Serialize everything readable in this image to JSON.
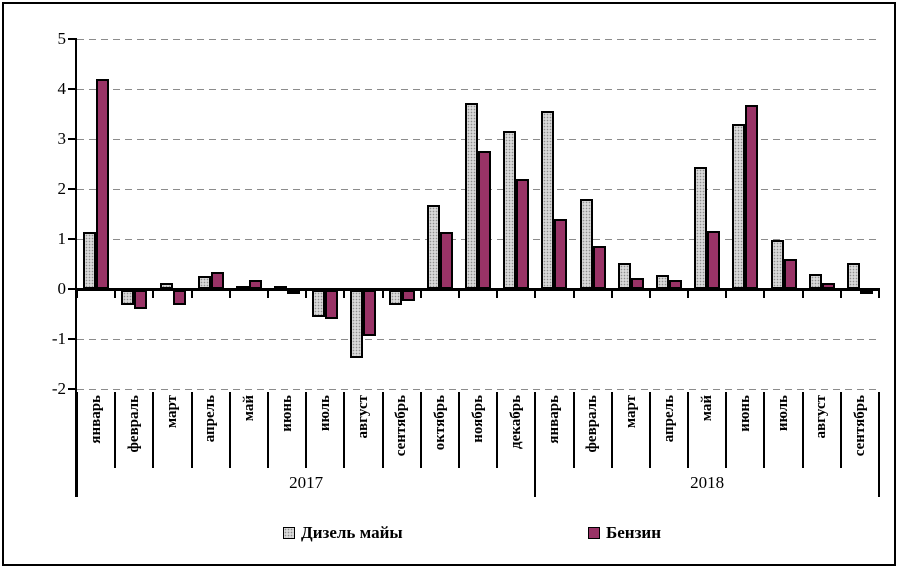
{
  "chart_data": {
    "type": "bar",
    "title": "",
    "categories": [
      "январь",
      "февраль",
      "март",
      "апрель",
      "май",
      "июнь",
      "июль",
      "август",
      "сентябрь",
      "октябрь",
      "ноябрь",
      "декабрь",
      "январь",
      "февраль",
      "март",
      "апрель",
      "май",
      "июнь",
      "июль",
      "август",
      "сентябрь"
    ],
    "year_groups": [
      {
        "label": "2017",
        "months": 12
      },
      {
        "label": "2018",
        "months": 9
      }
    ],
    "series": [
      {
        "name": "Дизель майы",
        "key": "diesel",
        "color": "#d9d9d9",
        "pattern": "dotted",
        "values": [
          1.15,
          -0.3,
          0.12,
          0.25,
          0.03,
          0.05,
          -0.53,
          -1.35,
          -0.3,
          1.68,
          3.72,
          3.15,
          3.55,
          1.8,
          0.52,
          0.29,
          2.43,
          3.3,
          0.97,
          0.3,
          0.52
        ]
      },
      {
        "name": "Бензин",
        "key": "benzin",
        "color": "#993366",
        "pattern": "solid",
        "values": [
          4.2,
          -0.38,
          -0.3,
          0.33,
          0.18,
          -0.07,
          -0.58,
          -0.92,
          -0.22,
          1.15,
          2.75,
          2.2,
          1.4,
          0.85,
          0.21,
          0.18,
          1.16,
          3.67,
          0.59,
          0.12,
          -0.07
        ]
      }
    ],
    "ylim": [
      -2,
      5
    ],
    "yticks": [
      5,
      4,
      3,
      2,
      1,
      0,
      -1,
      -2
    ],
    "grid": "horizontal-dashed",
    "legend_position": "bottom",
    "axis_color": "#000000",
    "grid_color": "#8c8c8c"
  }
}
